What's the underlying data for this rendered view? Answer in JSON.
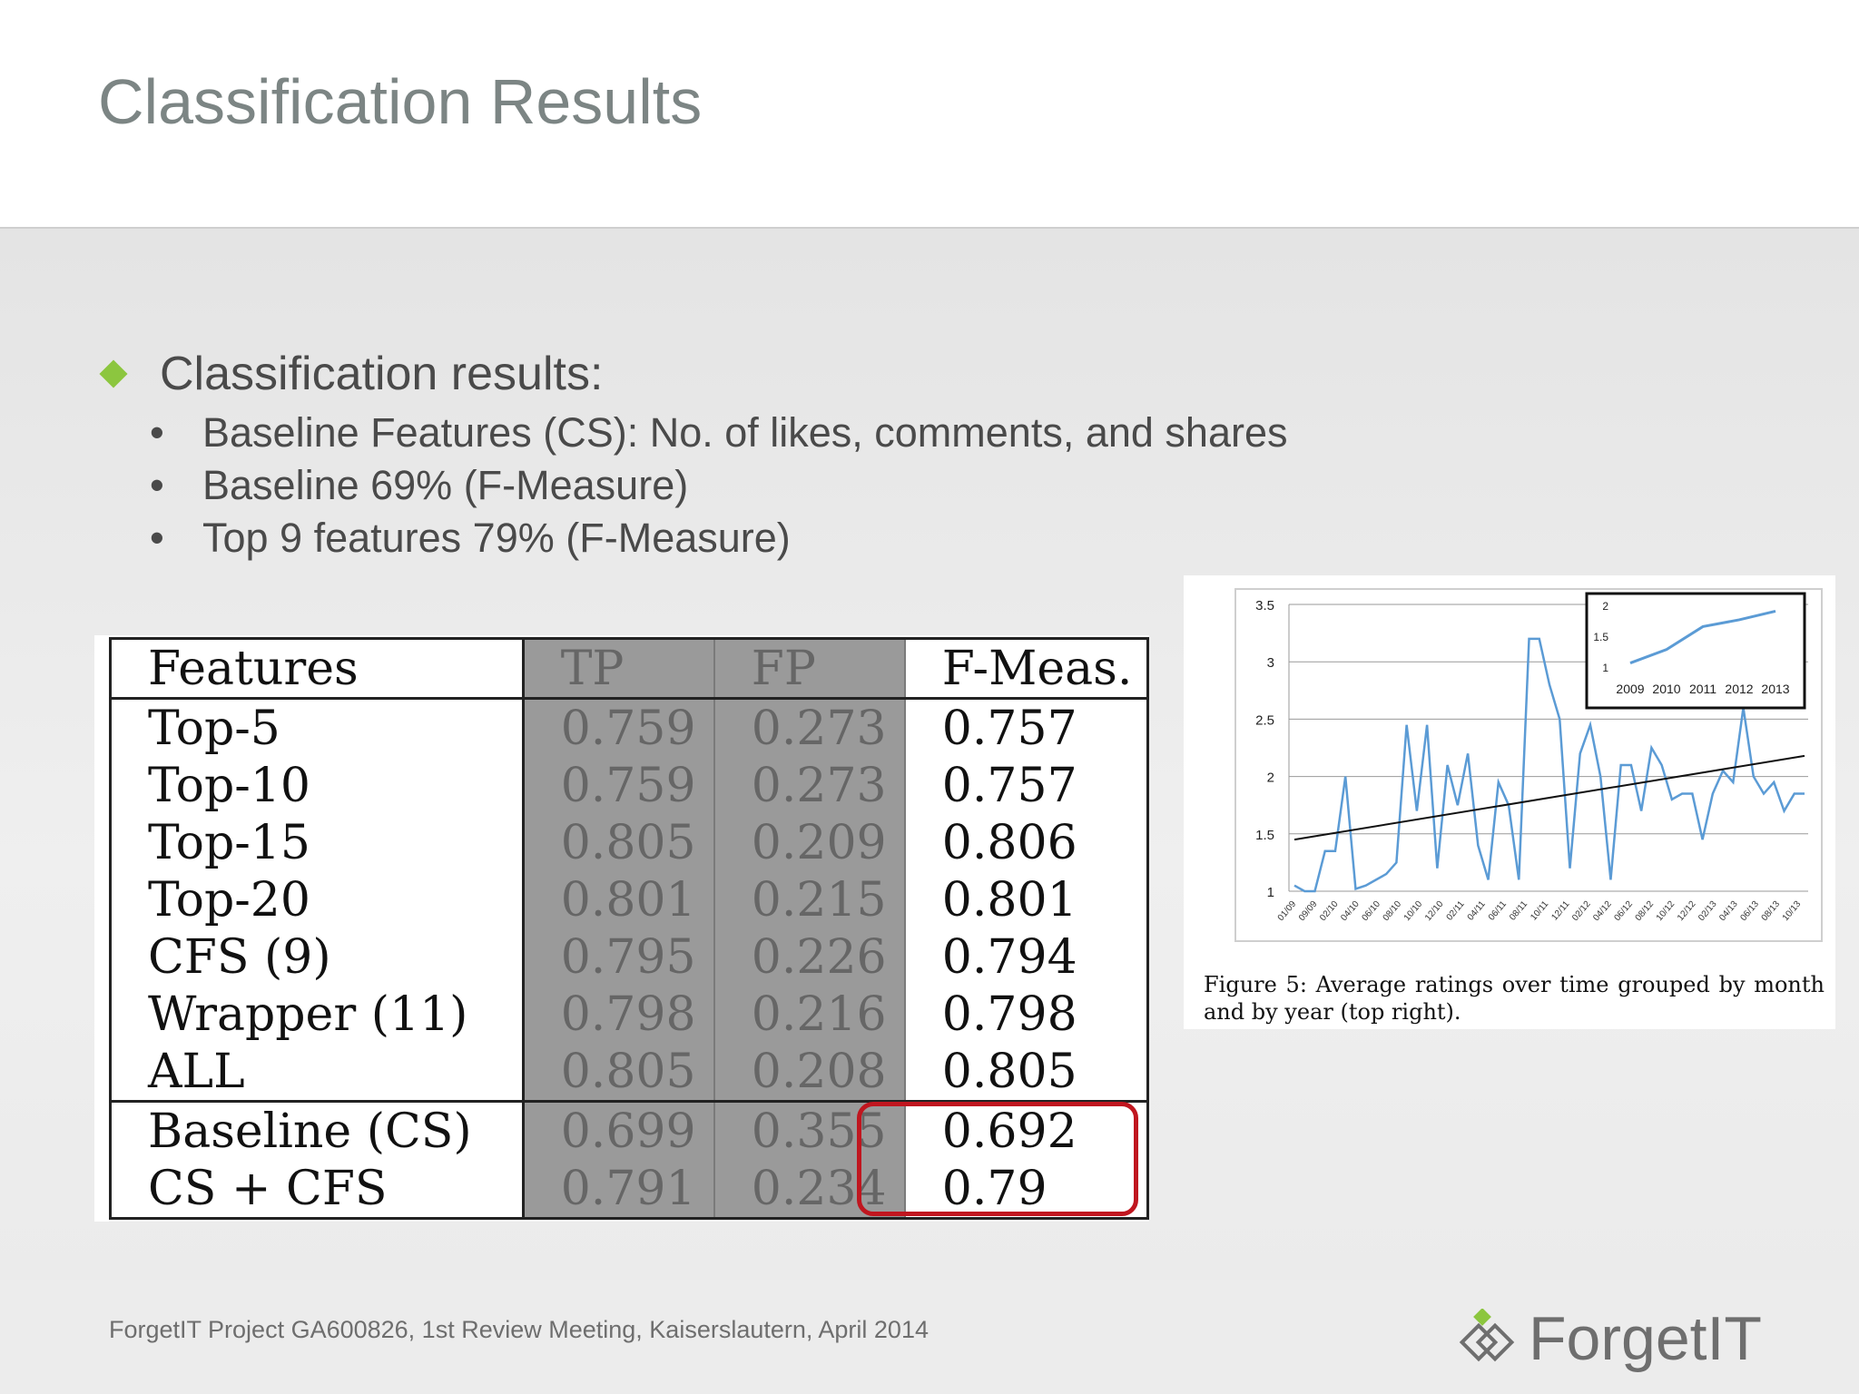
{
  "slide": {
    "title": "Classification Results"
  },
  "bullets": {
    "main": "Classification results:",
    "sub": [
      "Baseline Features (CS):  No. of likes, comments, and shares",
      "Baseline 69% (F-Measure)",
      "Top 9 features 79% (F-Measure)"
    ]
  },
  "table": {
    "headers": [
      "Features",
      "TP",
      "FP",
      "F-Meas."
    ],
    "rows": [
      [
        "Top-5",
        "0.759",
        "0.273",
        "0.757"
      ],
      [
        "Top-10",
        "0.759",
        "0.273",
        "0.757"
      ],
      [
        "Top-15",
        "0.805",
        "0.209",
        "0.806"
      ],
      [
        "Top-20",
        "0.801",
        "0.215",
        "0.801"
      ],
      [
        "CFS (9)",
        "0.795",
        "0.226",
        "0.794"
      ],
      [
        "Wrapper (11)",
        "0.798",
        "0.216",
        "0.798"
      ],
      [
        "ALL",
        "0.805",
        "0.208",
        "0.805"
      ],
      [
        "Baseline (CS)",
        "0.699",
        "0.355",
        "0.692"
      ],
      [
        "CS + CFS",
        "0.791",
        "0.234",
        "0.79"
      ]
    ],
    "highlight_color": "#c0161f"
  },
  "figure": {
    "caption": "Figure 5:  Average ratings over time grouped by month and by year (top right)."
  },
  "chart_data": [
    {
      "type": "line",
      "yticks": [
        "1",
        "1.5",
        "2",
        "2.5",
        "3",
        "3.5"
      ],
      "ylim": [
        1,
        3.5
      ],
      "xticks": [
        "01/09",
        "09/09",
        "02/10",
        "04/10",
        "06/10",
        "08/10",
        "10/10",
        "12/10",
        "02/11",
        "04/11",
        "06/11",
        "08/11",
        "10/11",
        "12/11",
        "02/12",
        "04/12",
        "06/12",
        "08/12",
        "10/12",
        "12/12",
        "02/13",
        "04/13",
        "06/13",
        "08/13",
        "10/13"
      ],
      "series": [
        {
          "values": [
            1.05,
            1.0,
            1.0,
            1.35,
            1.35,
            2.0,
            1.02,
            1.05,
            1.1,
            1.15,
            1.25,
            2.45,
            1.7,
            2.45,
            1.2,
            2.1,
            1.75,
            2.2,
            1.4,
            1.1,
            1.95,
            1.75,
            1.1,
            3.2,
            3.2,
            2.8,
            2.5,
            1.2,
            2.2,
            2.45,
            2.0,
            1.1,
            2.1,
            2.1,
            1.7,
            2.25,
            2.1,
            1.8,
            1.85,
            1.85,
            1.45,
            1.85,
            2.05,
            1.95,
            2.6,
            2.0,
            1.85,
            1.95,
            1.7,
            1.85,
            1.85
          ],
          "color": "#5b9bd5"
        },
        {
          "values": [
            1.45,
            2.18
          ],
          "color": "#111111"
        }
      ],
      "grid": true
    },
    {
      "type": "line",
      "categories": [
        "2009",
        "2010",
        "2011",
        "2012",
        "2013"
      ],
      "yticks": [
        "1",
        "1.5",
        "2"
      ],
      "ylim": [
        1,
        2
      ],
      "series": [
        {
          "values": [
            1.08,
            1.3,
            1.67,
            1.78,
            1.92
          ],
          "color": "#5b9bd5"
        }
      ],
      "legend": "none"
    }
  ],
  "footer": {
    "text": "ForgetIT Project GA600826, 1st Review Meeting, Kaiserslautern, April 2014",
    "logo_text": "ForgetIT",
    "logo_accent": "#8cc63f"
  }
}
